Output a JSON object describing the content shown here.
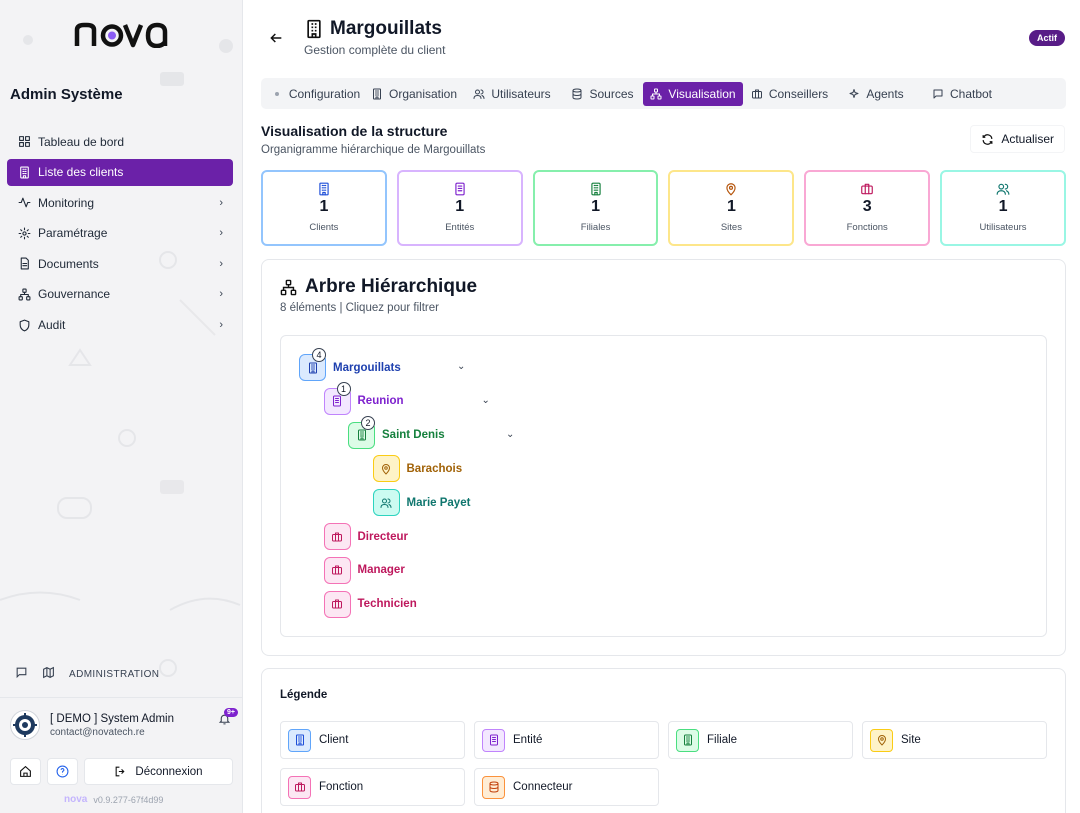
{
  "brand": {
    "logo_text": "nova",
    "accent": "#6b21a8"
  },
  "sidebar": {
    "section_title": "Admin Système",
    "items": [
      {
        "label": "Tableau de bord",
        "icon": "dashboard-icon",
        "active": false,
        "chevron": false
      },
      {
        "label": "Liste des clients",
        "icon": "building-icon",
        "active": true,
        "chevron": false
      },
      {
        "label": "Monitoring",
        "icon": "activity-icon",
        "active": false,
        "chevron": true
      },
      {
        "label": "Paramétrage",
        "icon": "gear-icon",
        "active": false,
        "chevron": true
      },
      {
        "label": "Documents",
        "icon": "document-icon",
        "active": false,
        "chevron": true
      },
      {
        "label": "Gouvernance",
        "icon": "network-icon",
        "active": false,
        "chevron": true
      },
      {
        "label": "Audit",
        "icon": "shield-icon",
        "active": false,
        "chevron": true
      }
    ],
    "admin_label": "ADMINISTRATION",
    "user": {
      "name": "[ DEMO ] System Admin",
      "email": "contact@novatech.re",
      "notifications": "9+"
    },
    "logout_label": "Déconnexion",
    "version": "v0.9.277-67f4d99"
  },
  "header": {
    "title": "Margouillats",
    "subtitle": "Gestion complète du client",
    "status": "Actif"
  },
  "tabs": [
    {
      "label": "Configuration",
      "icon": "dot-icon",
      "active": false
    },
    {
      "label": "Organisation",
      "icon": "building-icon",
      "active": false
    },
    {
      "label": "Utilisateurs",
      "icon": "users-icon",
      "active": false
    },
    {
      "label": "Sources",
      "icon": "database-icon",
      "active": false
    },
    {
      "label": "Visualisation",
      "icon": "network-icon",
      "active": true
    },
    {
      "label": "Conseillers",
      "icon": "briefcase-icon",
      "active": false
    },
    {
      "label": "Agents",
      "icon": "sparkles-icon",
      "active": false
    },
    {
      "label": "Chatbot",
      "icon": "chat-icon",
      "active": false
    }
  ],
  "section": {
    "title": "Visualisation de la structure",
    "subtitle": "Organigramme hiérarchique de Margouillats",
    "refresh_label": "Actualiser"
  },
  "stats": [
    {
      "value": "1",
      "label": "Clients",
      "color": "#93c5fd",
      "icon": "building-icon",
      "icon_color": "#1d4ed8"
    },
    {
      "value": "1",
      "label": "Entités",
      "color": "#d8b4fe",
      "icon": "entity-icon",
      "icon_color": "#7e22ce"
    },
    {
      "value": "1",
      "label": "Filiales",
      "color": "#86efac",
      "icon": "filiale-icon",
      "icon_color": "#15803d"
    },
    {
      "value": "1",
      "label": "Sites",
      "color": "#fde68a",
      "icon": "pin-icon",
      "icon_color": "#b45309"
    },
    {
      "value": "3",
      "label": "Fonctions",
      "color": "#f9a8d4",
      "icon": "briefcase-icon",
      "icon_color": "#be185d"
    },
    {
      "value": "1",
      "label": "Utilisateurs",
      "color": "#99f6e4",
      "icon": "users-icon",
      "icon_color": "#0f766e"
    }
  ],
  "tree": {
    "title": "Arbre Hiérarchique",
    "subtitle": "8 éléments | Cliquez pour filtrer",
    "nodes": [
      {
        "label": "Margouillats",
        "type": "client",
        "count": "4",
        "expandable": true,
        "color": "#1e40af",
        "bg": "#dbeafe",
        "border": "#60a5fa",
        "icon": "building-icon"
      },
      {
        "label": "Reunion",
        "type": "entity",
        "count": "1",
        "expandable": true,
        "color": "#7e22ce",
        "bg": "#f3e8ff",
        "border": "#c084fc",
        "icon": "entity-icon"
      },
      {
        "label": "Saint Denis",
        "type": "filiale",
        "count": "2",
        "expandable": true,
        "color": "#15803d",
        "bg": "#dcfce7",
        "border": "#4ade80",
        "icon": "filiale-icon"
      },
      {
        "label": "Barachois",
        "type": "site",
        "count": "",
        "expandable": false,
        "color": "#a16207",
        "bg": "#fef3c7",
        "border": "#facc15",
        "icon": "pin-icon"
      },
      {
        "label": "Marie Payet",
        "type": "user",
        "count": "",
        "expandable": false,
        "color": "#0f766e",
        "bg": "#ccfbf1",
        "border": "#2dd4bf",
        "icon": "users-icon"
      },
      {
        "label": "Directeur",
        "type": "function",
        "count": "",
        "expandable": false,
        "color": "#be185d",
        "bg": "#fce7f3",
        "border": "#f472b6",
        "icon": "briefcase-icon"
      },
      {
        "label": "Manager",
        "type": "function",
        "count": "",
        "expandable": false,
        "color": "#be185d",
        "bg": "#fce7f3",
        "border": "#f472b6",
        "icon": "briefcase-icon"
      },
      {
        "label": "Technicien",
        "type": "function",
        "count": "",
        "expandable": false,
        "color": "#be185d",
        "bg": "#fce7f3",
        "border": "#f472b6",
        "icon": "briefcase-icon"
      }
    ]
  },
  "legend": {
    "title": "Légende",
    "items": [
      {
        "label": "Client",
        "color": "#1d4ed8",
        "bg": "#dbeafe",
        "border": "#60a5fa",
        "icon": "building-icon"
      },
      {
        "label": "Entité",
        "color": "#7e22ce",
        "bg": "#f3e8ff",
        "border": "#c084fc",
        "icon": "entity-icon"
      },
      {
        "label": "Filiale",
        "color": "#15803d",
        "bg": "#dcfce7",
        "border": "#4ade80",
        "icon": "filiale-icon"
      },
      {
        "label": "Site",
        "color": "#a16207",
        "bg": "#fef3c7",
        "border": "#facc15",
        "icon": "pin-icon"
      },
      {
        "label": "Fonction",
        "color": "#be185d",
        "bg": "#fce7f3",
        "border": "#f472b6",
        "icon": "briefcase-icon"
      },
      {
        "label": "Connecteur",
        "color": "#c2410c",
        "bg": "#ffedd5",
        "border": "#fb923c",
        "icon": "database-icon"
      }
    ]
  }
}
